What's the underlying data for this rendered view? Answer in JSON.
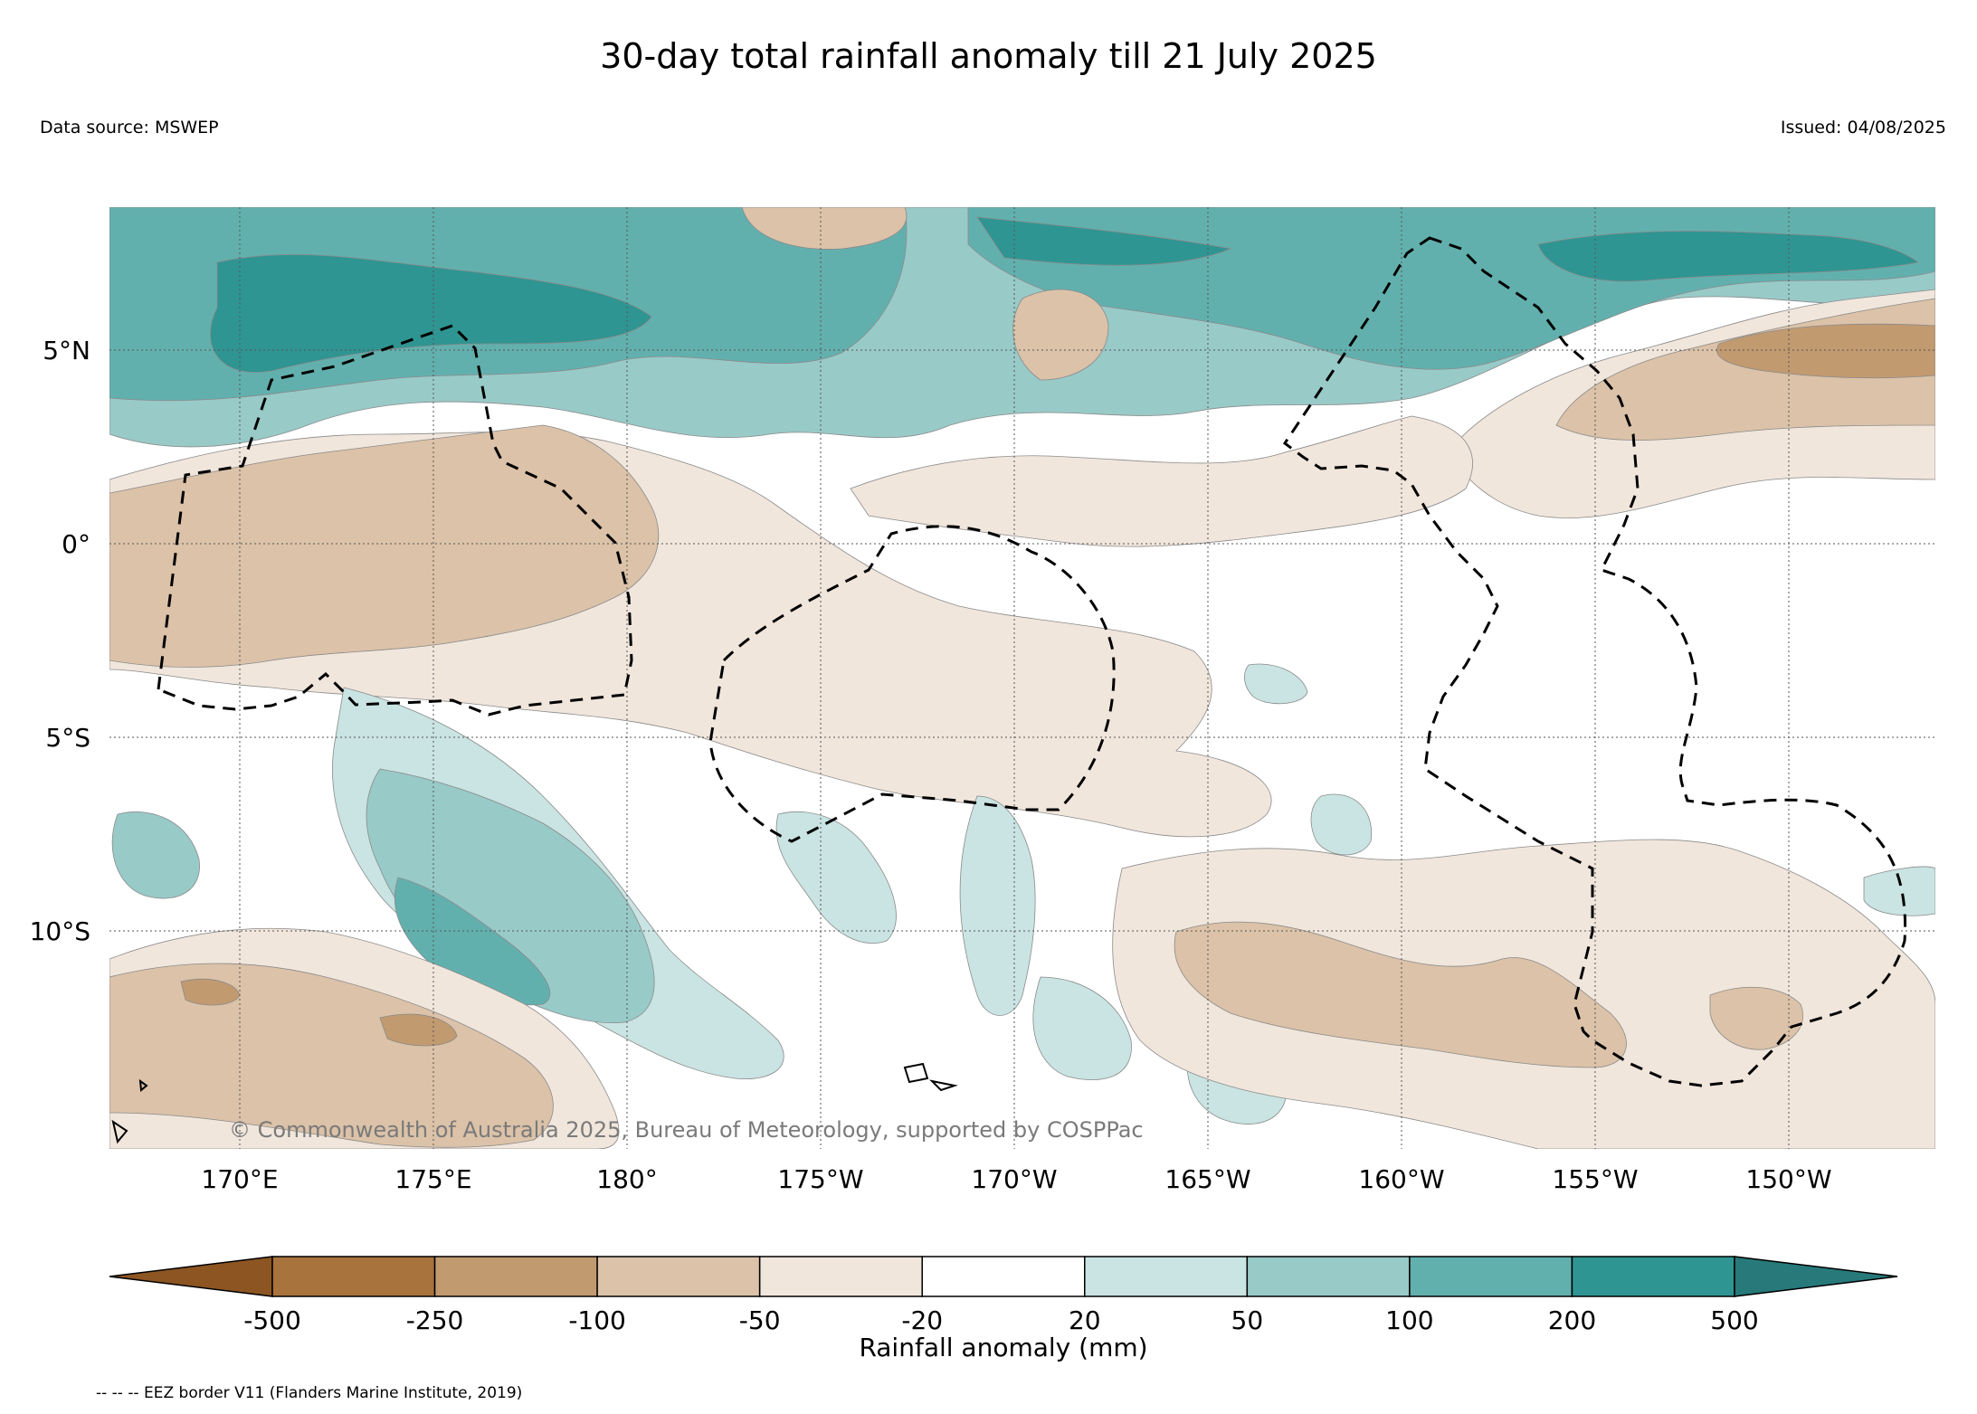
{
  "title": "30-day total rainfall anomaly till 21 July 2025",
  "data_source": "Data source: MSWEP",
  "issued": "Issued: 04/08/2025",
  "copyright": "© Commonwealth of Australia 2025, Bureau of Meteorology, supported by COSPPac",
  "lat_labels": [
    "5°N",
    "0°",
    "5°S",
    "10°S"
  ],
  "lon_labels": [
    "170°E",
    "175°E",
    "180°",
    "175°W",
    "170°W",
    "165°W",
    "160°W",
    "155°W",
    "150°W"
  ],
  "colorbar": {
    "label": "Rainfall anomaly (mm)",
    "ticks": [
      "-500",
      "-250",
      "-100",
      "-50",
      "-20",
      "20",
      "50",
      "100",
      "200",
      "500"
    ],
    "colors": [
      "#8c5522",
      "#a8733c",
      "#c29a70",
      "#dbc2a8",
      "#f1e6dc",
      "#ffffff",
      "#c9e4e2",
      "#98cac8",
      "#62b0ae",
      "#2f9592",
      "#27797a"
    ]
  },
  "footnote": "-- -- -- EEZ border V11 (Flanders Marine Institute, 2019)"
}
